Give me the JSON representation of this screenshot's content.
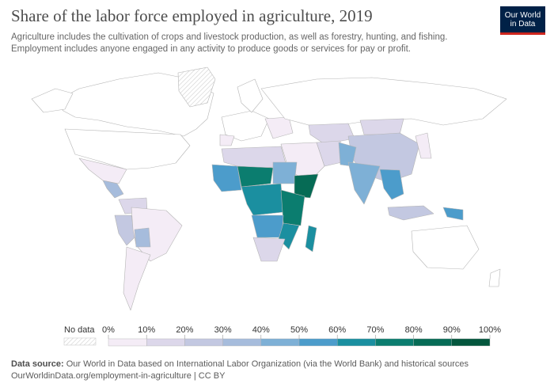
{
  "header": {
    "title": "Share of the labor force employed in agriculture, 2019",
    "subtitle_line1": "Agriculture includes the cultivation of crops and livestock production, as well as forestry, hunting, and fishing.",
    "subtitle_line2": "Employment includes anyone engaged in any activity to produce goods or services for pay or profit.",
    "logo_line1": "Our World",
    "logo_line2": "in Data"
  },
  "legend": {
    "no_data_label": "No data",
    "ticks": [
      "0%",
      "10%",
      "20%",
      "30%",
      "40%",
      "50%",
      "60%",
      "70%",
      "80%",
      "90%",
      "100%"
    ],
    "bin_colors": [
      "#ffffff",
      "#f4ecf6",
      "#dcd7ea",
      "#c3c8e1",
      "#a6bcdc",
      "#7eb0d6",
      "#4c9ccb",
      "#1b8fa0",
      "#0b7d6f",
      "#066b55",
      "#03563d"
    ]
  },
  "footer": {
    "source_label": "Data source:",
    "source_text": " Our World in Data based on International Labor Organization (via the World Bank) and historical sources",
    "url_text": "OurWorldinData.org/employment-in-agriculture | CC BY"
  },
  "colors": {
    "title": "#4d4d4d",
    "logo_bg": "#002147",
    "logo_accent": "#ce261e",
    "country_border": "#b5b5b5",
    "no_data_hatch": "#cfcfcf"
  }
}
